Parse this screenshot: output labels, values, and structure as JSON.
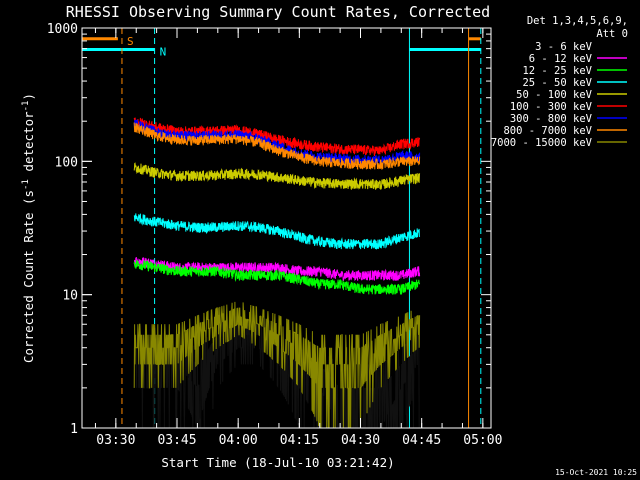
{
  "chart_data": {
    "type": "line",
    "title": "RHESSI Observing Summary Count Rates, Corrected",
    "detector_info": [
      "Det 1,3,4,5,6,9,",
      "Att 0"
    ],
    "xlabel": "Start Time (18-Jul-10 03:21:42)",
    "ylabel_main": "Corrected Count Rate (s",
    "ylabel_sup1": "-1",
    "ylabel_mid": " detector",
    "ylabel_sup2": "-1",
    "ylabel_end": ")",
    "yscale": "log",
    "ylim": [
      1,
      1000
    ],
    "y_ticks": [
      {
        "value": 1,
        "label": "1"
      },
      {
        "value": 10,
        "label": "10"
      },
      {
        "value": 100,
        "label": "100"
      },
      {
        "value": 1000,
        "label": "1000"
      }
    ],
    "xlim": [
      "03:21:42",
      "05:02:00"
    ],
    "x_ticks": [
      "03:30",
      "03:45",
      "04:00",
      "04:15",
      "04:30",
      "04:45",
      "05:00"
    ],
    "data_window": [
      "03:34:30",
      "04:44:30"
    ],
    "x_sample_times": [
      "03:35",
      "03:40",
      "03:45",
      "03:50",
      "03:55",
      "04:00",
      "04:05",
      "04:10",
      "04:15",
      "04:20",
      "04:25",
      "04:30",
      "04:35",
      "04:40",
      "04:44"
    ],
    "series": [
      {
        "name": "3 - 6 keV",
        "color": "#000000",
        "values": [
          3,
          3,
          3,
          2,
          4,
          5,
          5,
          4,
          3,
          2,
          1,
          1,
          1,
          2,
          3
        ]
      },
      {
        "name": "6 - 12 keV",
        "color": "#ff00ff",
        "values": [
          18,
          17,
          16,
          16,
          16,
          16,
          16,
          16,
          15,
          15,
          14,
          14,
          14,
          14,
          15
        ]
      },
      {
        "name": "12 - 25 keV",
        "color": "#00ff00",
        "values": [
          17,
          16,
          15,
          15,
          15,
          14,
          14,
          14,
          13,
          12,
          12,
          11,
          11,
          11,
          12
        ]
      },
      {
        "name": "25 - 50 keV",
        "color": "#00ffff",
        "values": [
          38,
          35,
          33,
          32,
          32,
          33,
          32,
          30,
          27,
          25,
          24,
          24,
          24,
          27,
          29
        ]
      },
      {
        "name": "50 - 100 keV",
        "color": "#cccc00",
        "values": [
          90,
          82,
          78,
          78,
          79,
          81,
          80,
          76,
          72,
          69,
          68,
          68,
          67,
          72,
          75
        ]
      },
      {
        "name": "100 - 300 keV",
        "color": "#ff0000",
        "values": [
          200,
          180,
          168,
          168,
          170,
          172,
          160,
          145,
          135,
          128,
          124,
          122,
          120,
          135,
          140
        ]
      },
      {
        "name": "300 - 800 keV",
        "color": "#0000ff",
        "values": [
          190,
          165,
          155,
          155,
          156,
          158,
          148,
          130,
          115,
          108,
          105,
          103,
          102,
          110,
          108
        ]
      },
      {
        "name": "800 - 7000 keV",
        "color": "#ff8800",
        "values": [
          180,
          155,
          145,
          144,
          146,
          148,
          138,
          120,
          108,
          100,
          97,
          96,
          95,
          100,
          100
        ]
      },
      {
        "name": "7000 - 15000 keV",
        "color": "#888800",
        "values": [
          4,
          4,
          4,
          5,
          6,
          7,
          6,
          5,
          4,
          3,
          3,
          3,
          4,
          5,
          6
        ]
      }
    ],
    "markers": [
      {
        "time": "03:31:30",
        "label": "S",
        "color": "#ff8800",
        "style": "dashed"
      },
      {
        "time": "03:39:30",
        "label": "N",
        "color": "#00ffff",
        "style": "dashed"
      },
      {
        "time": "04:42:00",
        "label": "",
        "color": "#00ffff",
        "style": "solid"
      },
      {
        "time": "04:56:30",
        "label": "",
        "color": "#ff8800",
        "style": "solid"
      },
      {
        "time": "04:59:30",
        "label": "",
        "color": "#00ffff",
        "style": "dashed"
      }
    ],
    "flag_bars": [
      {
        "color": "#ff8800",
        "y_value": 830,
        "segments": [
          [
            "03:21:42",
            "03:30:30"
          ],
          [
            "04:56:30",
            "04:59:30"
          ]
        ]
      },
      {
        "color": "#00ffff",
        "y_value": 690,
        "segments": [
          [
            "03:21:42",
            "03:39:30"
          ],
          [
            "04:42:00",
            "04:59:30"
          ]
        ]
      }
    ],
    "footer_date": "15-Oct-2021 10:25"
  }
}
